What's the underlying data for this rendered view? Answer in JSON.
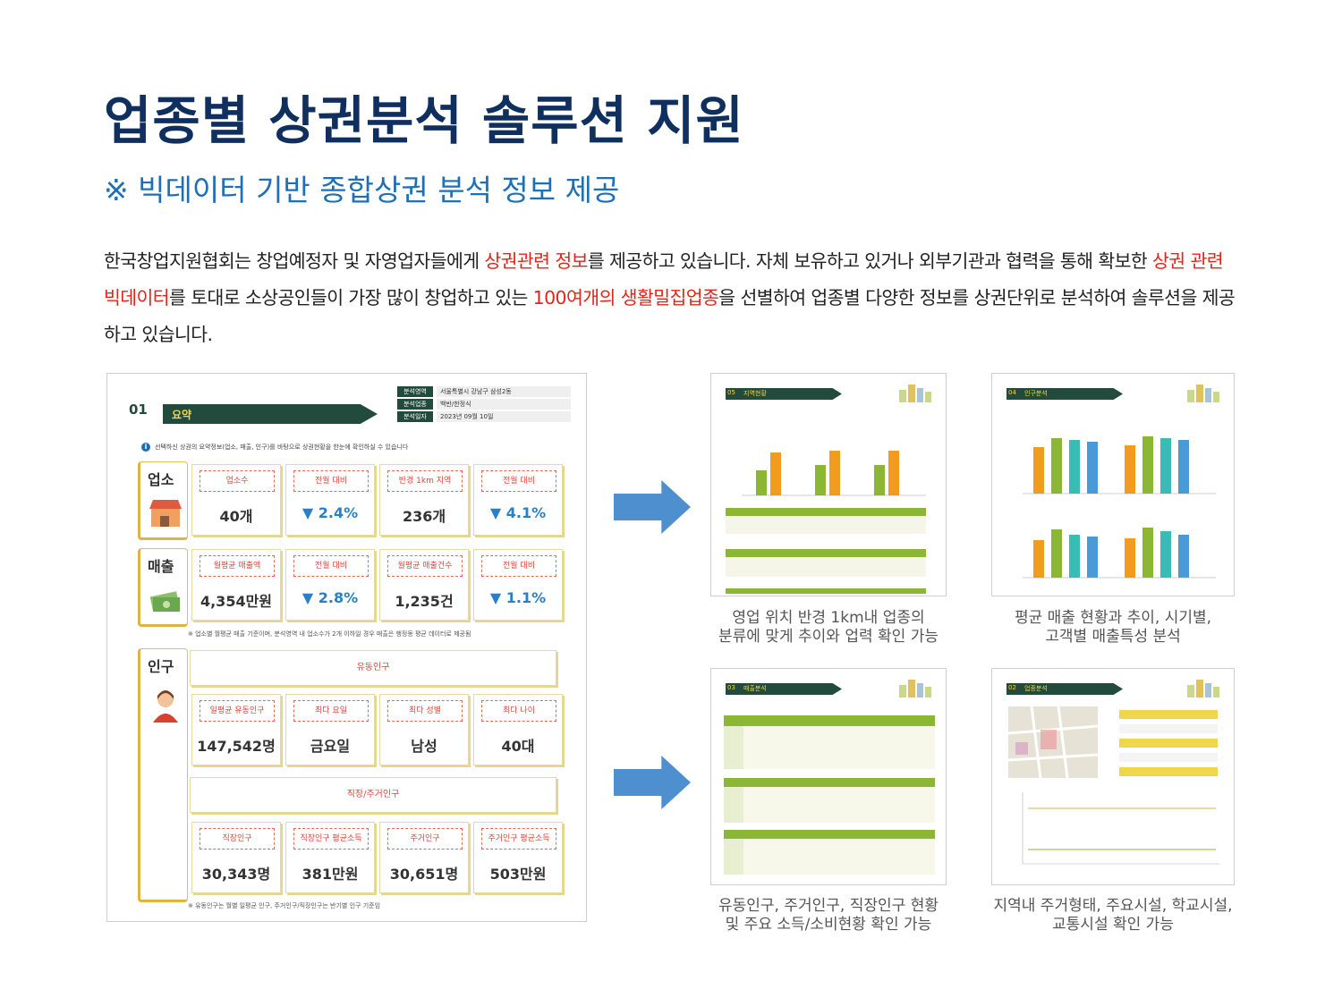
{
  "title": "업종별 상권분석 솔루션 지원",
  "subtitle": "※ 빅데이터 기반 종합상권 분석 정보 제공",
  "intro": {
    "p1": "한국창업지원협회는 창업예정자 및 자영업자들에게 ",
    "h1": "상권관련 정보",
    "p2": "를 제공하고 있습니다. 자체 보유하고 있거나 외부기관과 협력을 통해 확보한 ",
    "h2": "상권 관련 빅데이터",
    "p3": "를 토대로 소상공인들이 가장 많이 창업하고 있는 ",
    "h3": "100여개의 생활밀집업종",
    "p4": "을 선별하여 업종별 다양한 정보를 상권단위로 분석하여 솔루션을 제공하고 있습니다."
  },
  "report": {
    "num": "01",
    "label": "요약",
    "meta": [
      {
        "k": "분석영역",
        "v": "서울특별시 강남구 삼성2동"
      },
      {
        "k": "분석업종",
        "v": "백반/한정식"
      },
      {
        "k": "분석일자",
        "v": "2023년 09월 10일"
      }
    ],
    "note": "선택하신 상권의 요약정보(업소, 매출, 인구)를 바탕으로 상권현황을 한눈에 확인하실 수 있습니다",
    "store": {
      "label": "업소",
      "cards": [
        {
          "h": "업소수",
          "v": "40개"
        },
        {
          "h": "전월 대비",
          "v": "▼ 2.4%"
        },
        {
          "h": "반경 1km 지역",
          "v": "236개"
        },
        {
          "h": "전월 대비",
          "v": "▼ 4.1%"
        }
      ]
    },
    "sales": {
      "label": "매출",
      "cards": [
        {
          "h": "월평균 매출액",
          "v": "4,354만원"
        },
        {
          "h": "전월 대비",
          "v": "▼ 2.8%"
        },
        {
          "h": "월평균 매출건수",
          "v": "1,235건"
        },
        {
          "h": "전월 대비",
          "v": "▼ 1.1%"
        }
      ],
      "footnote": "※ 업소별 월평균 매출 기준이며, 분석영역 내 업소수가 2개 이하일 경우 매출은 행정동 평균 데이터로 제공됨"
    },
    "pop": {
      "label": "인구",
      "floating": "유동인구",
      "cards1": [
        {
          "h": "일평균 유동인구",
          "v": "147,542명"
        },
        {
          "h": "최다 요일",
          "v": "금요일"
        },
        {
          "h": "최다 성별",
          "v": "남성"
        },
        {
          "h": "최다 나이",
          "v": "40대"
        }
      ],
      "resident": "직장/주거인구",
      "cards2": [
        {
          "h": "직장인구",
          "v": "30,343명"
        },
        {
          "h": "직장인구 평균소득",
          "v": "381만원"
        },
        {
          "h": "주거인구",
          "v": "30,651명"
        },
        {
          "h": "주거인구 평균소득",
          "v": "503만원"
        }
      ],
      "footnote": "※ 유동인구는 월별 일평균 인구, 주거인구/직장인구는 반기별 인구 기준임"
    }
  },
  "thumbs": [
    {
      "num": "05",
      "title": "지역현황",
      "caption1": "영업 위치 반경 1km내 업종의",
      "caption2": "분류에 맞게 추이와 업력 확인 가능"
    },
    {
      "num": "04",
      "title": "인구분석",
      "caption1": "평균 매출 현황과 추이, 시기별,",
      "caption2": "고객별 매출특성 분석"
    },
    {
      "num": "03",
      "title": "매출분석",
      "caption1": "유동인구, 주거인구, 직장인구 현황",
      "caption2": "및 주요 소득/소비현황 확인 가능"
    },
    {
      "num": "02",
      "title": "업종분석",
      "caption1": "지역내 주거형태, 주요시설, 학교시설,",
      "caption2": "교통시설 확인 가능"
    }
  ]
}
